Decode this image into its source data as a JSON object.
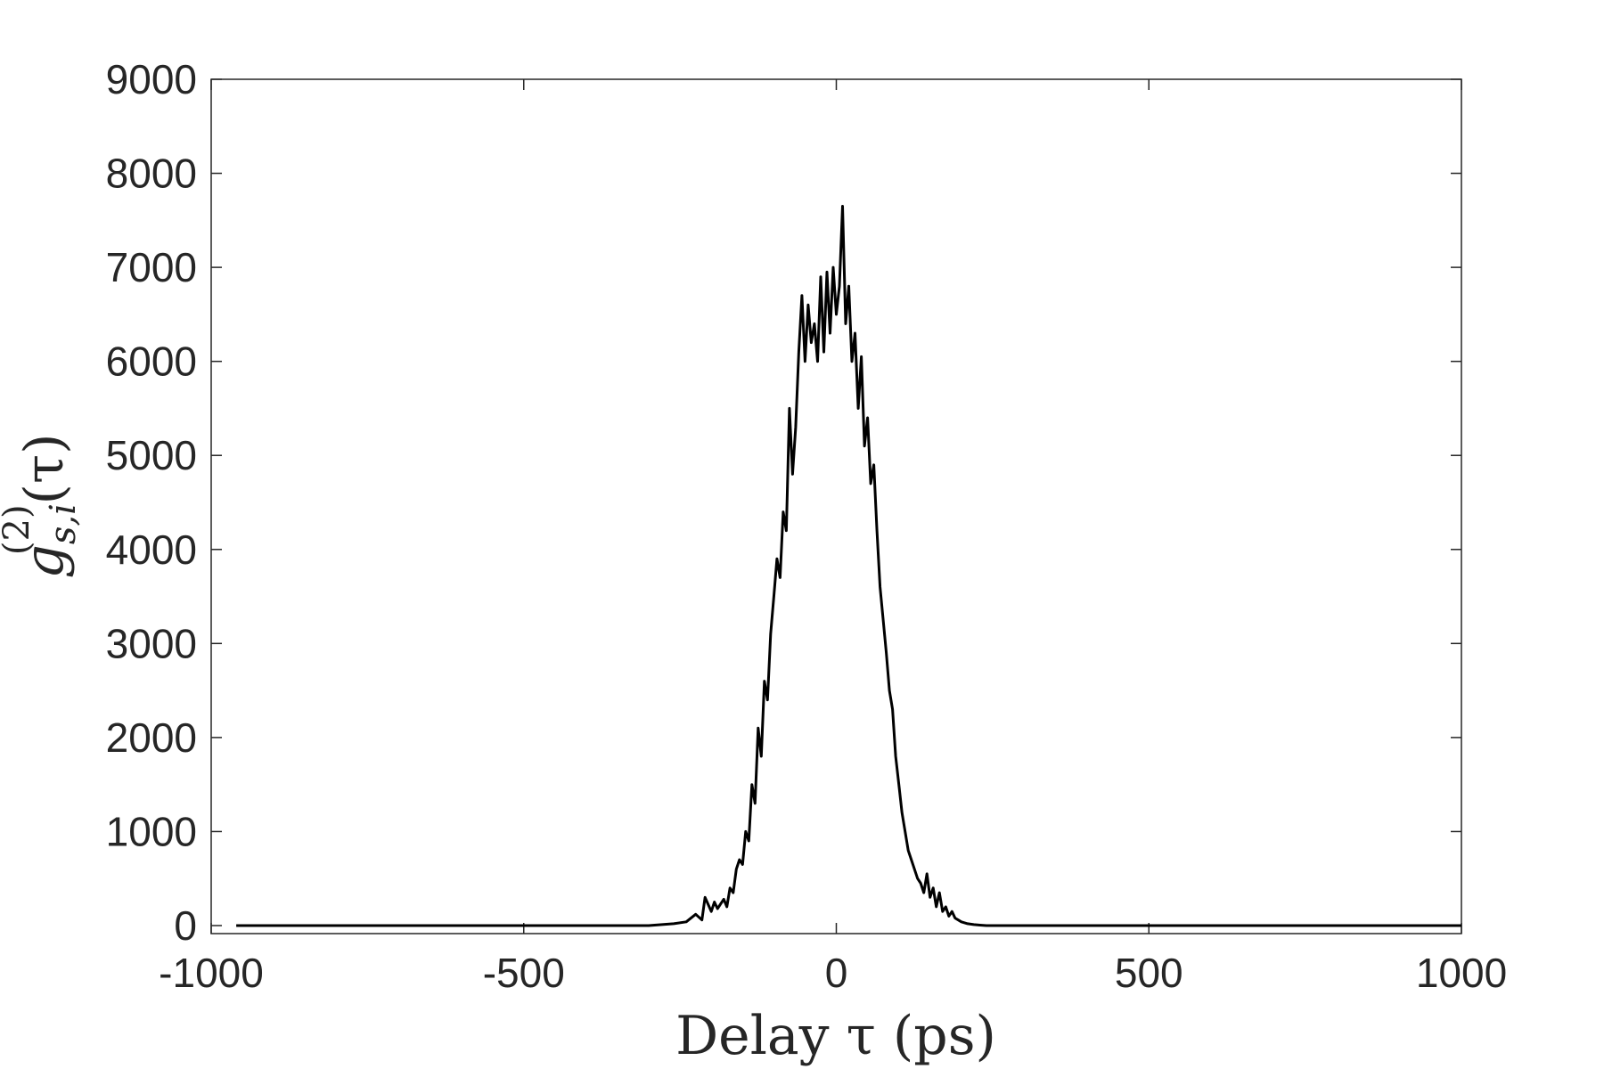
{
  "chart_data": {
    "type": "line",
    "title": "",
    "xlabel": "Delay τ (ps)",
    "ylabel": {
      "base": "g",
      "superscript": "(2)",
      "subscript": "s,i",
      "argument": "(τ)"
    },
    "xlim": [
      -1000,
      1000
    ],
    "ylim": [
      0,
      9000
    ],
    "xticks": [
      -1000,
      -500,
      0,
      500,
      1000
    ],
    "xtick_labels": [
      "-1000",
      "-500",
      "0",
      "500",
      "1000"
    ],
    "yticks": [
      0,
      1000,
      2000,
      3000,
      4000,
      5000,
      6000,
      7000,
      8000,
      9000
    ],
    "ytick_labels": [
      "0",
      "1000",
      "2000",
      "3000",
      "4000",
      "5000",
      "6000",
      "7000",
      "8000",
      "9000"
    ],
    "grid": false,
    "line_color": "#000000",
    "series": [
      {
        "x": [
          -960,
          -500,
          -300,
          -260,
          -240,
          -225,
          -215,
          -210,
          -200,
          -195,
          -190,
          -185,
          -180,
          -175,
          -170,
          -165,
          -160,
          -155,
          -150,
          -145,
          -140,
          -135,
          -130,
          -125,
          -120,
          -115,
          -110,
          -105,
          -100,
          -95,
          -90,
          -85,
          -80,
          -75,
          -70,
          -65,
          -60,
          -55,
          -50,
          -45,
          -40,
          -35,
          -30,
          -25,
          -20,
          -15,
          -10,
          -5,
          0,
          5,
          10,
          15,
          20,
          25,
          30,
          35,
          40,
          45,
          50,
          55,
          60,
          65,
          70,
          75,
          80,
          85,
          90,
          95,
          100,
          105,
          110,
          115,
          120,
          125,
          130,
          135,
          140,
          145,
          150,
          155,
          160,
          165,
          170,
          175,
          180,
          185,
          190,
          195,
          200,
          210,
          220,
          230,
          240,
          250,
          260,
          300,
          500,
          1000
        ],
        "y": [
          0,
          0,
          0,
          20,
          40,
          120,
          60,
          300,
          150,
          250,
          180,
          230,
          280,
          200,
          400,
          350,
          600,
          700,
          650,
          1000,
          900,
          1500,
          1300,
          2100,
          1800,
          2600,
          2400,
          3100,
          3500,
          3900,
          3700,
          4400,
          4200,
          5500,
          4800,
          5300,
          6100,
          6700,
          6000,
          6600,
          6200,
          6400,
          6000,
          6900,
          6100,
          6950,
          6300,
          7000,
          6500,
          6800,
          7650,
          6400,
          6800,
          6000,
          6300,
          5500,
          6050,
          5100,
          5400,
          4700,
          4900,
          4200,
          3600,
          3250,
          2900,
          2500,
          2300,
          1800,
          1500,
          1200,
          1000,
          800,
          700,
          600,
          500,
          450,
          350,
          550,
          300,
          400,
          200,
          350,
          150,
          200,
          100,
          150,
          80,
          60,
          40,
          20,
          10,
          5,
          0,
          0,
          0,
          0,
          0,
          0
        ]
      }
    ]
  }
}
